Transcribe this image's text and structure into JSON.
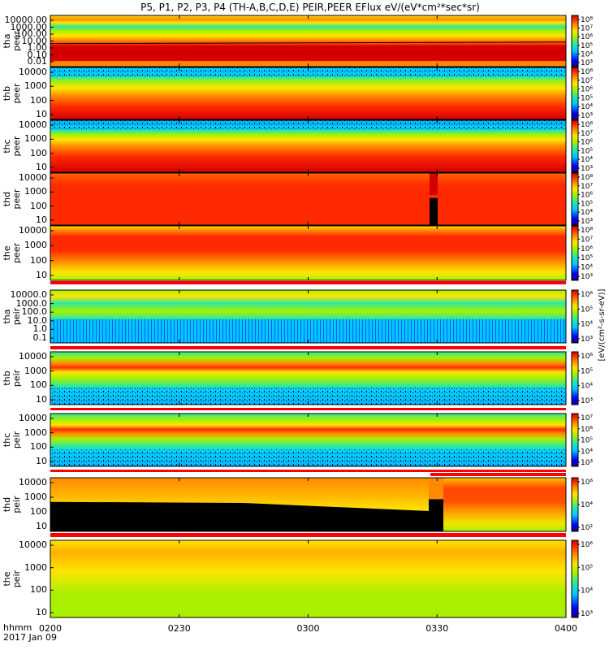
{
  "title": "P5, P1, P2, P3, P4 (TH-A,B,C,D,E) PEIR,PEER EFlux eV/(eV*cm²*sec*sr)",
  "footer": {
    "time_label": "hhmm",
    "date_label": "2017 Jan 09"
  },
  "colorbar_units": "[eV/(cm²-s-sr-eV)]",
  "colors": {
    "frame": "#000000",
    "band_red": "#ff0000",
    "fill_dark": "#000000"
  },
  "chart_data": {
    "type": "heatmap",
    "x_axis": {
      "ticks": [
        "0200",
        "0230",
        "0300",
        "0330",
        "0400"
      ],
      "range": [
        "0200",
        "0400"
      ]
    },
    "panels": [
      {
        "probe": "tha",
        "species": "peer",
        "ylabel": [
          "tha",
          "peer"
        ],
        "yticks": [
          "10000.00",
          "1000.00",
          "100.00",
          "10.00",
          "1.00",
          "0.10",
          "0.01"
        ],
        "cbticks": [
          "10⁸",
          "10⁷",
          "10⁶",
          "10⁵",
          "10⁴",
          "10³"
        ]
      },
      {
        "probe": "thb",
        "species": "peer",
        "ylabel": [
          "thb",
          "peer"
        ],
        "yticks": [
          "10000",
          "1000",
          "100",
          "10"
        ],
        "cbticks": [
          "10⁸",
          "10⁷",
          "10⁶",
          "10⁵",
          "10⁴",
          "10³"
        ]
      },
      {
        "probe": "thc",
        "species": "peer",
        "ylabel": [
          "thc",
          "peer"
        ],
        "yticks": [
          "10000",
          "1000",
          "100",
          "10"
        ],
        "cbticks": [
          "10⁸",
          "10⁷",
          "10⁶",
          "10⁵",
          "10⁴",
          "10³"
        ]
      },
      {
        "probe": "thd",
        "species": "peer",
        "ylabel": [
          "thd",
          "peer"
        ],
        "yticks": [
          "10000",
          "1000",
          "100",
          "10"
        ],
        "cbticks": [
          "10⁸",
          "10⁷",
          "10⁶",
          "10⁵",
          "10⁴",
          "10³"
        ]
      },
      {
        "probe": "the",
        "species": "peer",
        "ylabel": [
          "the",
          "peer"
        ],
        "yticks": [
          "10000",
          "1000",
          "100",
          "10"
        ],
        "cbticks": [
          "10⁸",
          "10⁷",
          "10⁶",
          "10⁵",
          "10⁴",
          "10³"
        ]
      },
      {
        "probe": "tha",
        "species": "peir",
        "ylabel": [
          "tha",
          "peir"
        ],
        "yticks": [
          "10000.0",
          "1000.0",
          "100.0",
          "10.0",
          "1.0",
          "0.1"
        ],
        "cbticks": [
          "10⁶",
          "10⁵",
          "10⁴",
          "10³"
        ]
      },
      {
        "probe": "thb",
        "species": "peir",
        "ylabel": [
          "thb",
          "peir"
        ],
        "yticks": [
          "10000",
          "1000",
          "100",
          "10"
        ],
        "cbticks": [
          "10⁶",
          "10⁵",
          "10⁴",
          "10³"
        ]
      },
      {
        "probe": "thc",
        "species": "peir",
        "ylabel": [
          "thc",
          "peir"
        ],
        "yticks": [
          "10000",
          "1000",
          "100",
          "10"
        ],
        "cbticks": [
          "10⁷",
          "10⁶",
          "10⁵",
          "10⁴",
          "10³"
        ]
      },
      {
        "probe": "thd",
        "species": "peir",
        "ylabel": [
          "thd",
          "peir"
        ],
        "yticks": [
          "10000",
          "1000",
          "100",
          "10"
        ],
        "cbticks": [
          "10⁶",
          "10⁴",
          "10²"
        ]
      },
      {
        "probe": "the",
        "species": "peir",
        "ylabel": [
          "the",
          "peir"
        ],
        "yticks": [
          "10000",
          "1000",
          "100",
          "10"
        ],
        "cbticks": [
          "10⁶",
          "10⁵",
          "10⁴",
          "10³"
        ]
      }
    ],
    "grid": false,
    "legend": "colorbars-right"
  }
}
